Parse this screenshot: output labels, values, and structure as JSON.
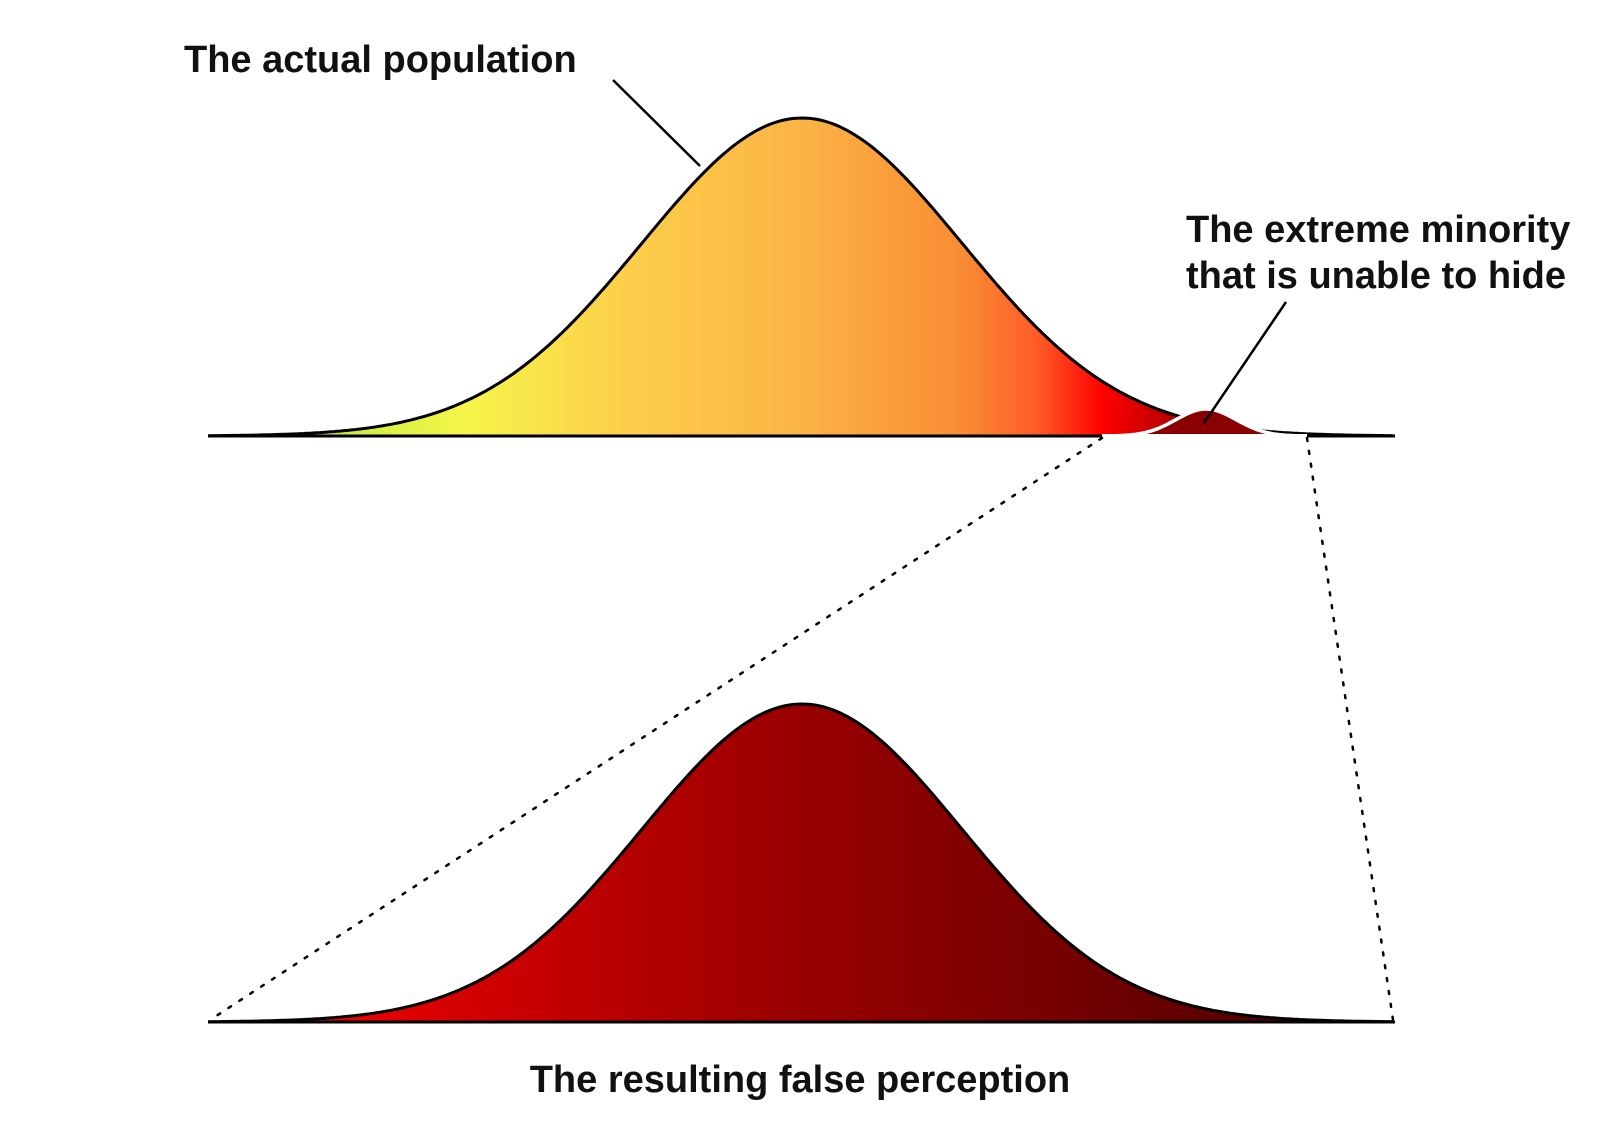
{
  "labels": {
    "actual_population": "The actual population",
    "extreme_minority_line1": "The extreme minority",
    "extreme_minority_line2": "that is unable to hide",
    "false_perception": "The resulting false perception"
  },
  "colors": {
    "background": "#ffffff",
    "outline": "#000000",
    "minority_outline": "#ffffff",
    "dark_red": "#8a0000",
    "top_gradient": [
      "#a8e83c",
      "#f7f54a",
      "#fcd04a",
      "#fbb646",
      "#f98c34",
      "#ff5a26",
      "#ff0000",
      "#a20000",
      "#5a0000"
    ],
    "bottom_gradient": [
      "#ff0000",
      "#c80000",
      "#9a0000",
      "#7a0000",
      "#4a0000"
    ]
  }
}
